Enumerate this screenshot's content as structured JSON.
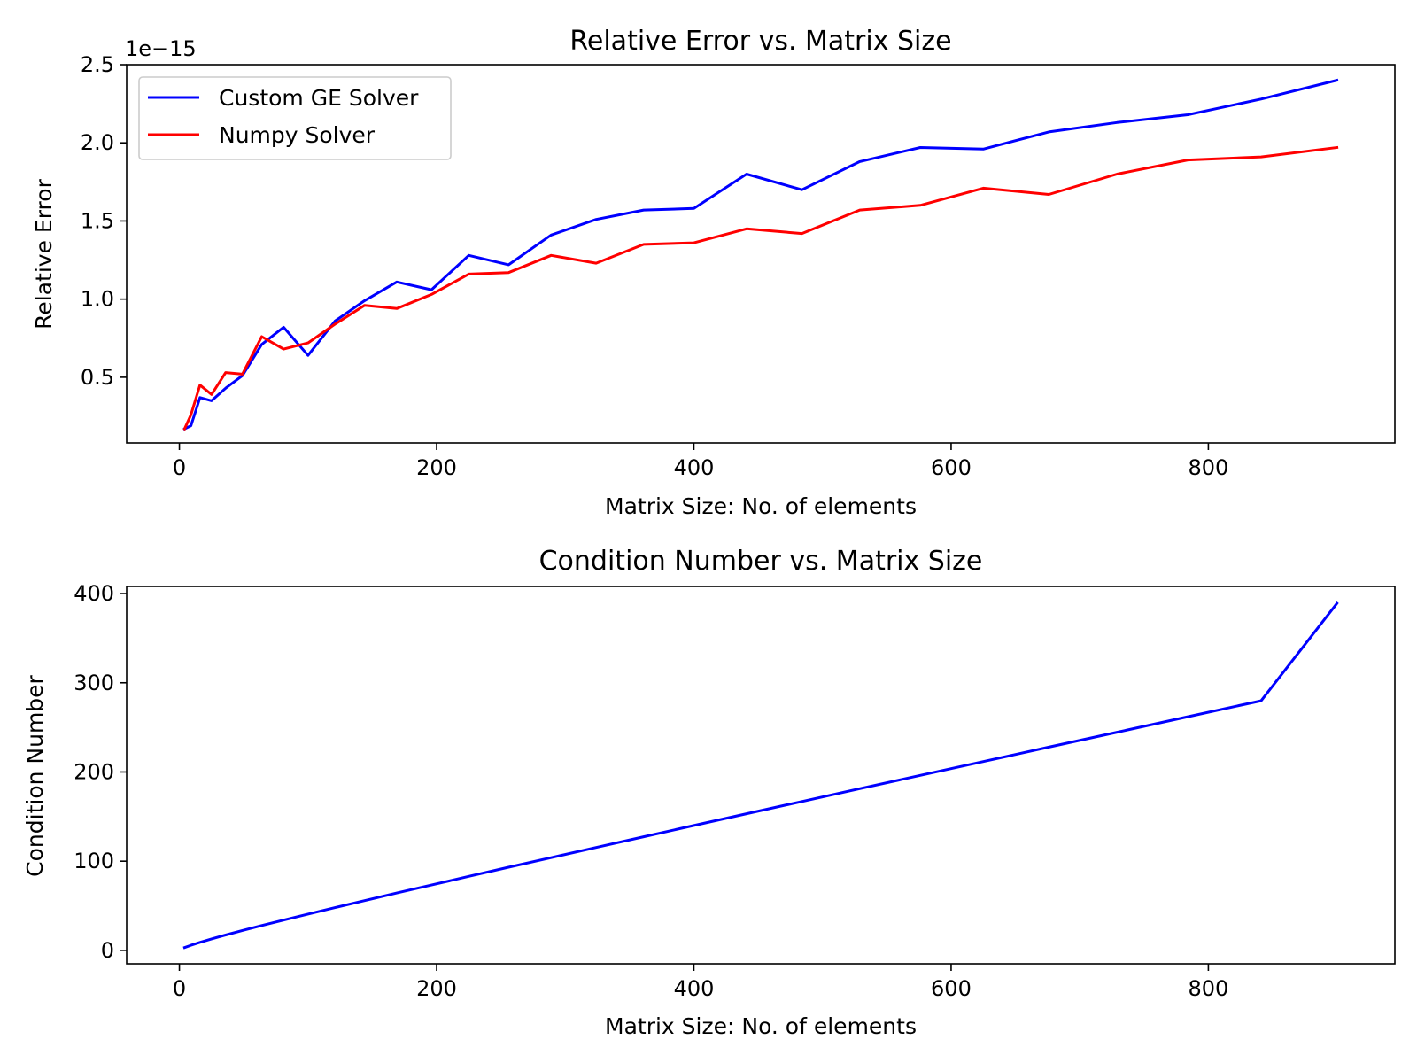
{
  "chart_data": [
    {
      "type": "line",
      "title": "Relative Error vs. Matrix Size",
      "xlabel": "Matrix Size: No. of elements",
      "ylabel": "Relative Error",
      "offset_text": "1e−15",
      "xlim": [
        -41,
        945
      ],
      "ylim": [
        0.08,
        2.5
      ],
      "xticks": [
        0,
        200,
        400,
        600,
        800
      ],
      "xtick_labels": [
        "0",
        "200",
        "400",
        "600",
        "800"
      ],
      "yticks": [
        0.5,
        1.0,
        1.5,
        2.0,
        2.5
      ],
      "ytick_labels": [
        "0.5",
        "1.0",
        "1.5",
        "2.0",
        "2.5"
      ],
      "grid": false,
      "legend_position": "upper-left",
      "x": [
        4,
        9,
        16,
        25,
        36,
        49,
        64,
        81,
        100,
        121,
        144,
        169,
        196,
        225,
        256,
        289,
        324,
        361,
        400,
        441,
        484,
        529,
        576,
        625,
        676,
        729,
        784,
        841,
        900
      ],
      "series": [
        {
          "name": "Custom GE Solver",
          "color": "#0000ff",
          "values": [
            0.17,
            0.19,
            0.37,
            0.35,
            0.43,
            0.51,
            0.71,
            0.82,
            0.64,
            0.86,
            0.99,
            1.11,
            1.06,
            1.28,
            1.22,
            1.41,
            1.51,
            1.57,
            1.58,
            1.8,
            1.7,
            1.88,
            1.97,
            1.96,
            2.07,
            2.13,
            2.18,
            2.28,
            2.4
          ]
        },
        {
          "name": "Numpy Solver",
          "color": "#ff0000",
          "values": [
            0.17,
            0.26,
            0.45,
            0.39,
            0.53,
            0.52,
            0.76,
            0.68,
            0.72,
            0.84,
            0.96,
            0.94,
            1.03,
            1.16,
            1.17,
            1.28,
            1.23,
            1.35,
            1.36,
            1.45,
            1.42,
            1.57,
            1.6,
            1.71,
            1.67,
            1.8,
            1.89,
            1.91,
            1.97
          ]
        }
      ]
    },
    {
      "type": "line",
      "title": "Condition Number vs. Matrix Size",
      "xlabel": "Matrix Size: No. of elements",
      "ylabel": "Condition Number",
      "xlim": [
        -41,
        945
      ],
      "ylim": [
        -15,
        408
      ],
      "xticks": [
        0,
        200,
        400,
        600,
        800
      ],
      "xtick_labels": [
        "0",
        "200",
        "400",
        "600",
        "800"
      ],
      "yticks": [
        0,
        100,
        200,
        300,
        400
      ],
      "ytick_labels": [
        "0",
        "100",
        "200",
        "300",
        "400"
      ],
      "grid": false,
      "x": [
        4,
        9,
        16,
        25,
        36,
        49,
        64,
        81,
        100,
        121,
        144,
        169,
        196,
        225,
        256,
        289,
        324,
        361,
        400,
        441,
        484,
        529,
        576,
        625,
        676,
        729,
        784,
        841,
        900
      ],
      "series": [
        {
          "color": "#0000ff",
          "values": [
            3.2,
            5.8,
            9.0,
            12.9,
            17.3,
            22.3,
            27.9,
            34.0,
            40.7,
            48.0,
            55.8,
            64.3,
            73.3,
            83.0,
            93.2,
            104.0,
            115.4,
            127.4,
            140.0,
            153.2,
            166.9,
            181.3,
            196.2,
            211.7,
            227.9,
            244.6,
            261.9,
            279.8,
            389.0
          ]
        }
      ]
    }
  ]
}
